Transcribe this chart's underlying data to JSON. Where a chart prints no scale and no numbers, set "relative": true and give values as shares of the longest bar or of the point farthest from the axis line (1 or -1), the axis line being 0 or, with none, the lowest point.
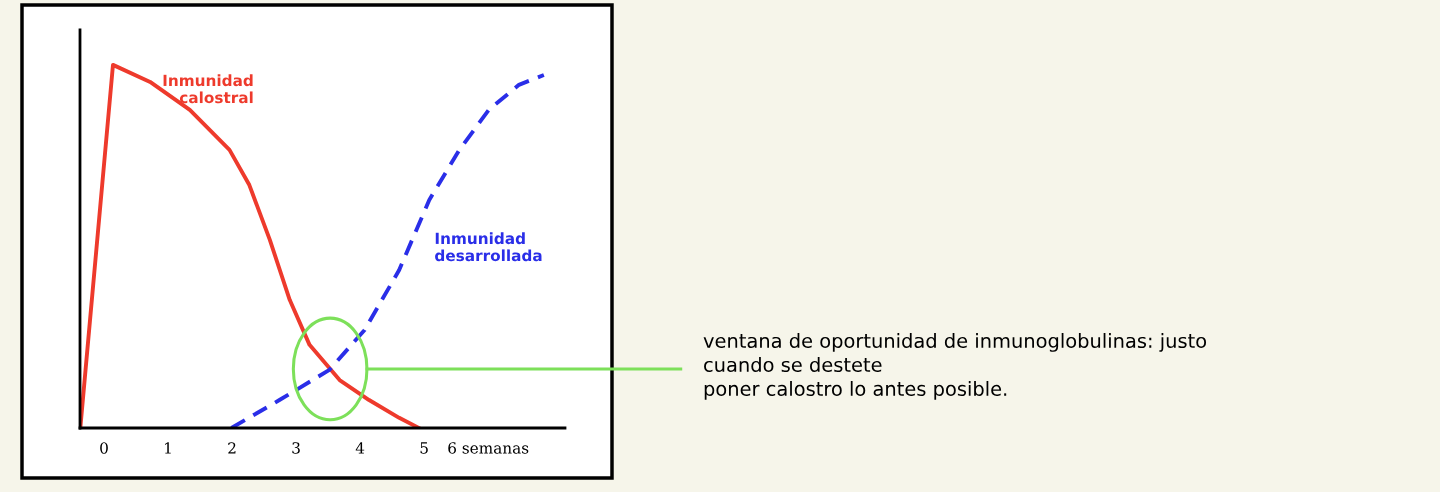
{
  "chart_data": {
    "type": "line",
    "relative": true,
    "xlim": [
      -0.375,
      7.2
    ],
    "xticks": [
      0,
      1,
      2,
      3,
      4,
      5,
      {
        "value": 6,
        "label": "6 semanas"
      }
    ],
    "series": [
      {
        "name": "Inmunidad\ncalostral",
        "color": "#ee3a2c",
        "line_style": "solid",
        "x": [
          -0.37,
          0.14,
          0.72,
          1.34,
          1.96,
          2.27,
          2.59,
          2.9,
          3.21,
          3.68,
          4.14,
          4.61,
          4.92
        ],
        "values": [
          0,
          1,
          0.953,
          0.876,
          0.766,
          0.669,
          0.518,
          0.353,
          0.229,
          0.132,
          0.077,
          0.028,
          0
        ]
      },
      {
        "name": "Inmunidad\ndesarrollada",
        "color": "#2a2ee8",
        "line_style": "dashed",
        "x": [
          1.99,
          2.74,
          3.52,
          4.07,
          4.61,
          5.08,
          5.55,
          6.01,
          6.48,
          6.87
        ],
        "values": [
          0,
          0.077,
          0.16,
          0.27,
          0.435,
          0.628,
          0.766,
          0.876,
          0.945,
          0.972
        ]
      }
    ],
    "annotations": [
      "ventana de oportunidad de inmunoglobulinas: justo\ncuando se destete\nponer calostro lo antes posible."
    ],
    "legend": false
  }
}
